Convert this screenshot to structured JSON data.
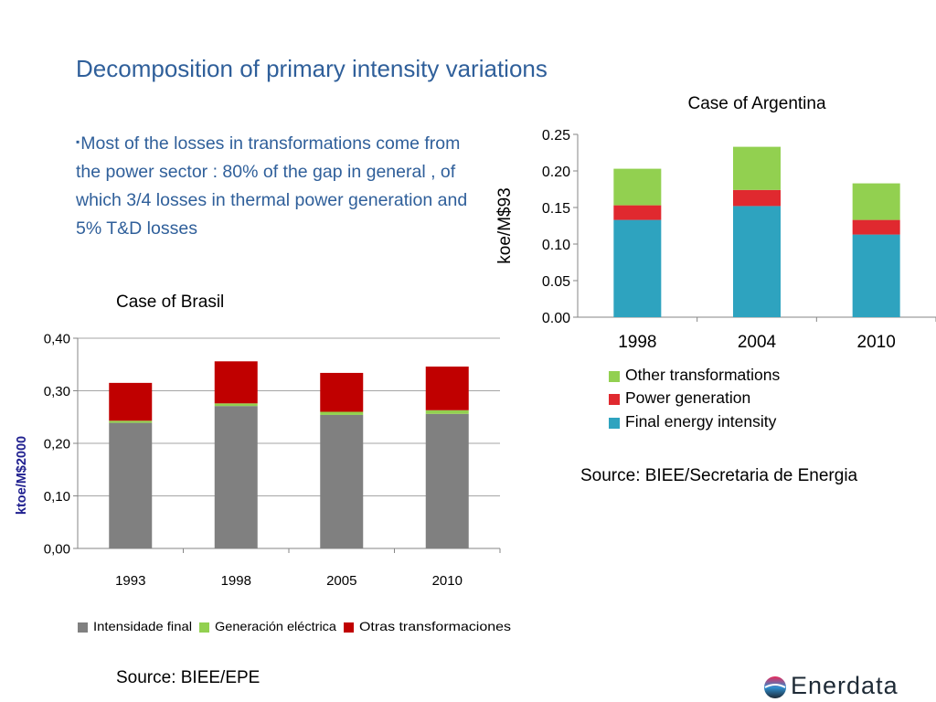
{
  "slide": {
    "title": "Decomposition of primary intensity variations",
    "bullet": "Most of the losses in transformations come from the power sector : 80% of the gap in general , of which 3/4  losses in thermal power generation and 5% T&D losses",
    "bullet_marker": "▪",
    "source_argentina": "Source: BIEE/Secretaria de Energia",
    "source_brasil": "Source: BIEE/EPE",
    "logo_text": "Enerdata"
  },
  "chart_data": [
    {
      "type": "bar",
      "stacked": true,
      "title": "Case of Argentina",
      "ylabel": "koe/M$93",
      "xlabel": "",
      "categories": [
        "1998",
        "2004",
        "2010"
      ],
      "ylim": [
        0,
        0.25
      ],
      "yticks": [
        "0.00",
        "0.05",
        "0.10",
        "0.15",
        "0.20",
        "0.25"
      ],
      "series": [
        {
          "name": "Final energy intensity",
          "color": "#2ea3bf",
          "values": [
            0.133,
            0.152,
            0.113
          ]
        },
        {
          "name": "Power generation",
          "color": "#e0292f",
          "values": [
            0.02,
            0.022,
            0.02
          ]
        },
        {
          "name": "Other transformations",
          "color": "#92d050",
          "values": [
            0.05,
            0.059,
            0.05
          ]
        }
      ],
      "legend_position": "bottom",
      "grid": false
    },
    {
      "type": "bar",
      "stacked": true,
      "title": "Case of Brasil",
      "ylabel": "ktoe/M$2000",
      "xlabel": "",
      "categories": [
        "1993",
        "1998",
        "2005",
        "2010"
      ],
      "ylim": [
        0,
        0.4
      ],
      "yticks": [
        "0,00",
        "0,10",
        "0,20",
        "0,30",
        "0,40"
      ],
      "series": [
        {
          "name": "Intensidade final",
          "color": "#808080",
          "values": [
            0.239,
            0.271,
            0.254,
            0.256
          ]
        },
        {
          "name": "Generación eléctrica",
          "color": "#92d050",
          "values": [
            0.004,
            0.005,
            0.006,
            0.007
          ]
        },
        {
          "name": "Otras transformaciones",
          "color": "#c00000",
          "values": [
            0.072,
            0.08,
            0.074,
            0.083
          ]
        }
      ],
      "legend_position": "bottom",
      "grid": true
    }
  ]
}
